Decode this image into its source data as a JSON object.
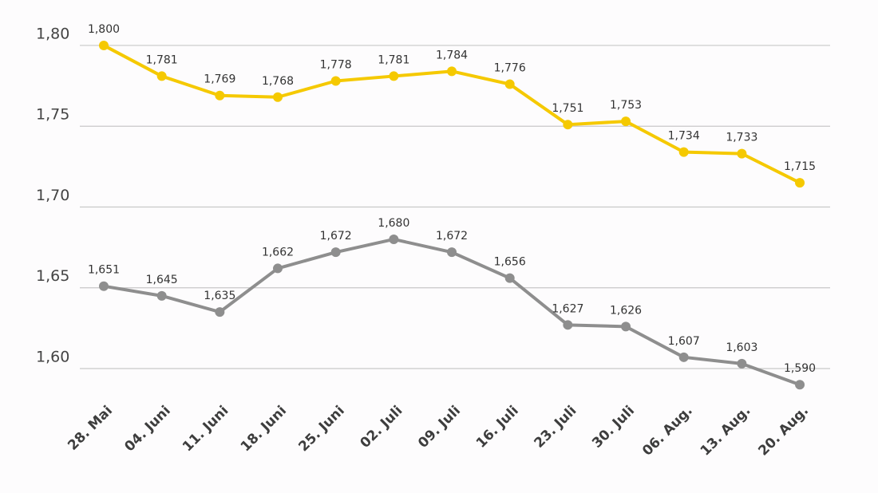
{
  "chart_data": {
    "type": "line",
    "categories": [
      "28. Mai",
      "04. Juni",
      "11. Juni",
      "18. Juni",
      "25. Juni",
      "02. Juli",
      "09. Juli",
      "16. Juli",
      "23. Juli",
      "30. Juli",
      "06. Aug.",
      "13. Aug.",
      "20. Aug."
    ],
    "series": [
      {
        "color": "#f5c900",
        "values": [
          1.8,
          1.781,
          1.769,
          1.768,
          1.778,
          1.781,
          1.784,
          1.776,
          1.751,
          1.753,
          1.734,
          1.733,
          1.715
        ],
        "value_labels": [
          "1,800",
          "1,781",
          "1,769",
          "1,768",
          "1,778",
          "1,781",
          "1,784",
          "1,776",
          "1,751",
          "1,753",
          "1,734",
          "1,733",
          "1,715"
        ]
      },
      {
        "color": "#8e8e8e",
        "values": [
          1.651,
          1.645,
          1.635,
          1.662,
          1.672,
          1.68,
          1.672,
          1.656,
          1.627,
          1.626,
          1.607,
          1.603,
          1.59
        ],
        "value_labels": [
          "1,651",
          "1,645",
          "1,635",
          "1,662",
          "1,672",
          "1,680",
          "1,672",
          "1,656",
          "1,627",
          "1,626",
          "1,607",
          "1,603",
          "1,590"
        ]
      }
    ],
    "ylim": [
      1.58,
      1.81
    ],
    "yticks": [
      {
        "value": 1.6,
        "label": "1,60"
      },
      {
        "value": 1.65,
        "label": "1,65"
      },
      {
        "value": 1.7,
        "label": "1,70"
      },
      {
        "value": 1.75,
        "label": "1,75"
      },
      {
        "value": 1.8,
        "label": "1,80"
      }
    ],
    "grid": true
  }
}
